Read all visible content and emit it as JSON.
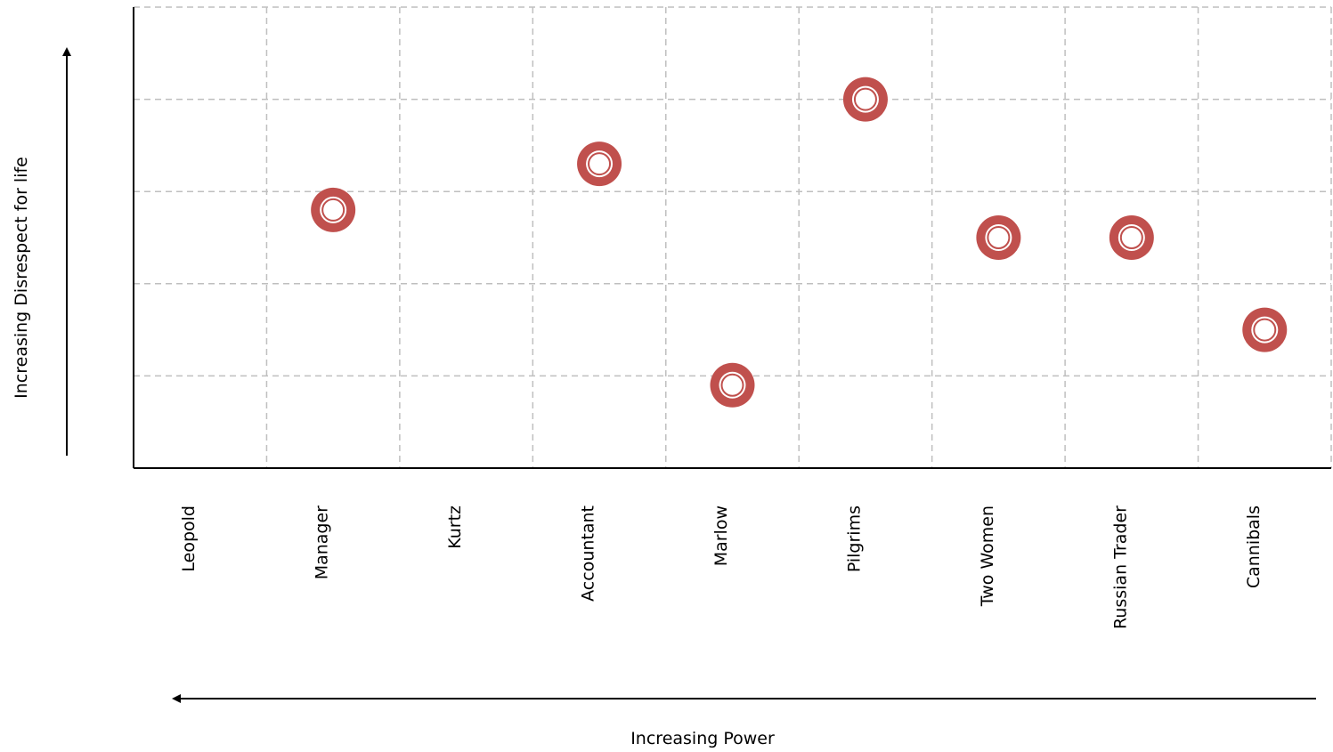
{
  "chart_data": {
    "type": "scatter",
    "x_label": "Increasing Power",
    "y_label": "Increasing Disrespect for life",
    "categories": [
      "Leopold",
      "Manager",
      "Kurtz",
      "Accountant",
      "Marlow",
      "Pilgrims",
      "Two Women",
      "Russian Trader",
      "Cannibals"
    ],
    "values": [
      null,
      2.8,
      null,
      3.3,
      0.9,
      4.0,
      2.5,
      2.5,
      1.5
    ],
    "color": "#c0504d",
    "ylim": [
      0,
      5
    ],
    "yticks": [
      1,
      2,
      3,
      4,
      5
    ],
    "grid": true
  }
}
